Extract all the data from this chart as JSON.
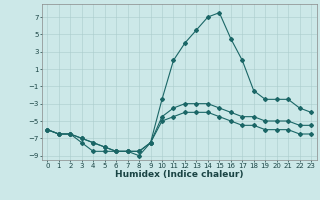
{
  "title": "",
  "xlabel": "Humidex (Indice chaleur)",
  "ylabel": "",
  "bg_color": "#cce8e8",
  "grid_color": "#aacccc",
  "line_color": "#1a6666",
  "xlim": [
    -0.5,
    23.5
  ],
  "ylim": [
    -9.5,
    8.5
  ],
  "xticks": [
    0,
    1,
    2,
    3,
    4,
    5,
    6,
    7,
    8,
    9,
    10,
    11,
    12,
    13,
    14,
    15,
    16,
    17,
    18,
    19,
    20,
    21,
    22,
    23
  ],
  "yticks": [
    -9,
    -7,
    -5,
    -3,
    -1,
    1,
    3,
    5,
    7
  ],
  "series1_x": [
    0,
    1,
    2,
    3,
    4,
    5,
    6,
    7,
    8,
    9,
    10,
    11,
    12,
    13,
    14,
    15,
    16,
    17,
    18,
    19,
    20,
    21,
    22,
    23
  ],
  "series1_y": [
    -6.0,
    -6.5,
    -6.5,
    -7.5,
    -8.5,
    -8.5,
    -8.5,
    -8.5,
    -9.0,
    -7.5,
    -2.5,
    2.0,
    4.0,
    5.5,
    7.0,
    7.5,
    4.5,
    2.0,
    -1.5,
    -2.5,
    -2.5,
    -2.5,
    -3.5,
    -4.0
  ],
  "series2_x": [
    0,
    1,
    2,
    3,
    4,
    5,
    6,
    7,
    8,
    9,
    10,
    11,
    12,
    13,
    14,
    15,
    16,
    17,
    18,
    19,
    20,
    21,
    22,
    23
  ],
  "series2_y": [
    -6.0,
    -6.5,
    -6.5,
    -7.0,
    -7.5,
    -8.0,
    -8.5,
    -8.5,
    -8.5,
    -7.5,
    -4.5,
    -3.5,
    -3.0,
    -3.0,
    -3.0,
    -3.5,
    -4.0,
    -4.5,
    -4.5,
    -5.0,
    -5.0,
    -5.0,
    -5.5,
    -5.5
  ],
  "series3_x": [
    0,
    1,
    2,
    3,
    4,
    5,
    6,
    7,
    8,
    9,
    10,
    11,
    12,
    13,
    14,
    15,
    16,
    17,
    18,
    19,
    20,
    21,
    22,
    23
  ],
  "series3_y": [
    -6.0,
    -6.5,
    -6.5,
    -7.0,
    -7.5,
    -8.0,
    -8.5,
    -8.5,
    -8.5,
    -7.5,
    -5.0,
    -4.5,
    -4.0,
    -4.0,
    -4.0,
    -4.5,
    -5.0,
    -5.5,
    -5.5,
    -6.0,
    -6.0,
    -6.0,
    -6.5,
    -6.5
  ],
  "figsize": [
    3.2,
    2.0
  ],
  "dpi": 100,
  "tick_fontsize": 5.0,
  "xlabel_fontsize": 6.5,
  "marker_size": 2.0
}
